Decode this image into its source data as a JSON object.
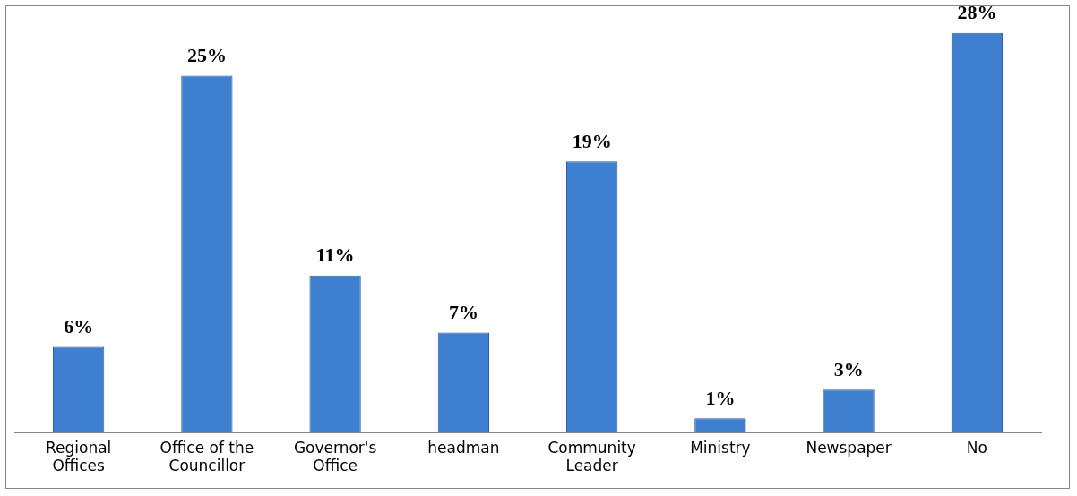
{
  "chart_data": {
    "type": "bar",
    "categories": [
      "Regional Offices",
      "Office of the Councillor",
      "Governor's Office",
      "headman",
      "Community Leader",
      "Ministry",
      "Newspaper",
      "No"
    ],
    "values": [
      6,
      25,
      11,
      7,
      19,
      1,
      3,
      28
    ],
    "color": "#3f7fcf",
    "value_labels": [
      "6%",
      "25%",
      "11%",
      "7%",
      "19%",
      "1%",
      "3%",
      "28%"
    ],
    "grid": false,
    "legend": false
  }
}
